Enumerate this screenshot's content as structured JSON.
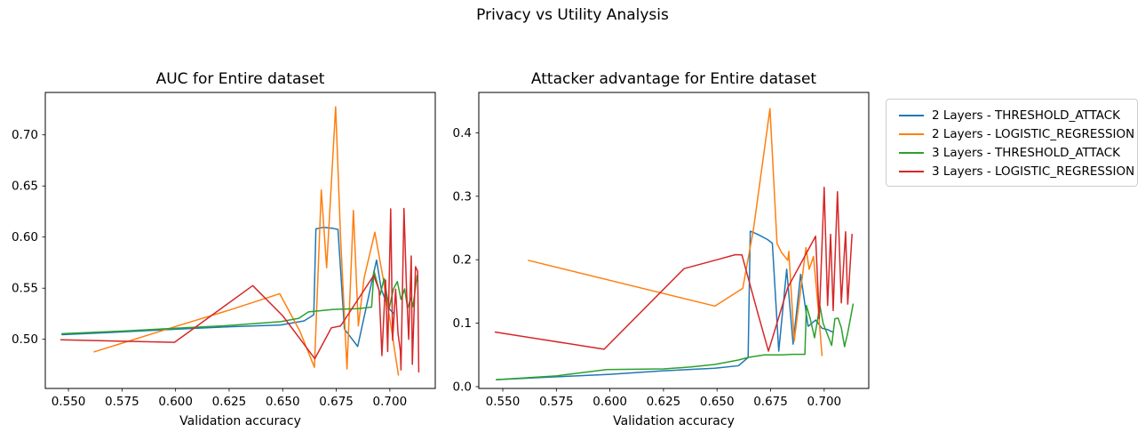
{
  "suptitle": "Privacy vs Utility Analysis",
  "colors": {
    "blue": "#1f77b4",
    "orange": "#ff7f0e",
    "green": "#2ca02c",
    "red": "#d62728",
    "spine": "#000000",
    "legend_border": "#cccccc"
  },
  "legend": {
    "items": [
      {
        "label": "2 Layers - THRESHOLD_ATTACK",
        "color": "#1f77b4"
      },
      {
        "label": "2 Layers - LOGISTIC_REGRESSION",
        "color": "#ff7f0e"
      },
      {
        "label": "3 Layers - THRESHOLD_ATTACK",
        "color": "#2ca02c"
      },
      {
        "label": "3 Layers - LOGISTIC_REGRESSION",
        "color": "#d62728"
      }
    ]
  },
  "chart_data": [
    {
      "type": "line",
      "title": "AUC for Entire dataset",
      "xlabel": "Validation accuracy",
      "xlim": [
        0.5392,
        0.7212
      ],
      "ylim": [
        0.4519,
        0.7415
      ],
      "grid": false,
      "xticks": [
        0.55,
        0.575,
        0.6,
        0.625,
        0.65,
        0.675,
        0.7
      ],
      "xtick_labels": [
        "0.550",
        "0.575",
        "0.600",
        "0.625",
        "0.650",
        "0.675",
        "0.700"
      ],
      "yticks": [
        0.5,
        0.55,
        0.6,
        0.65,
        0.7
      ],
      "ytick_labels": [
        "0.50",
        "0.55",
        "0.60",
        "0.65",
        "0.70"
      ],
      "series": [
        {
          "name": "2 Layers - THRESHOLD_ATTACK",
          "color": "#1f77b4",
          "x": [
            0.547,
            0.575,
            0.6,
            0.625,
            0.649,
            0.66,
            0.6645,
            0.6655,
            0.669,
            0.6735,
            0.6758,
            0.6788,
            0.685,
            0.6938,
            0.696,
            0.698,
            0.7,
            0.702
          ],
          "y": [
            0.5045,
            0.5072,
            0.5098,
            0.5122,
            0.514,
            0.518,
            0.524,
            0.608,
            0.6095,
            0.6085,
            0.6075,
            0.51,
            0.493,
            0.5775,
            0.549,
            0.538,
            0.529,
            0.525
          ]
        },
        {
          "name": "2 Layers - LOGISTIC_REGRESSION",
          "color": "#ff7f0e",
          "x": [
            0.562,
            0.6,
            0.625,
            0.6486,
            0.658,
            0.6648,
            0.668,
            0.6705,
            0.6747,
            0.677,
            0.68,
            0.683,
            0.6853,
            0.688,
            0.693,
            0.697,
            0.7,
            0.704
          ],
          "y": [
            0.4877,
            0.5125,
            0.5285,
            0.5446,
            0.508,
            0.4726,
            0.646,
            0.57,
            0.7275,
            0.6,
            0.471,
            0.626,
            0.5131,
            0.56,
            0.6047,
            0.558,
            0.52,
            0.465
          ]
        },
        {
          "name": "3 Layers - THRESHOLD_ATTACK",
          "color": "#2ca02c",
          "x": [
            0.547,
            0.575,
            0.6,
            0.625,
            0.649,
            0.6575,
            0.662,
            0.6735,
            0.685,
            0.6915,
            0.6926,
            0.6955,
            0.6973,
            0.6997,
            0.7017,
            0.7035,
            0.7052,
            0.7069,
            0.7083,
            0.7098,
            0.7108,
            0.7127
          ],
          "y": [
            0.5055,
            0.508,
            0.5108,
            0.5135,
            0.5172,
            0.5205,
            0.5268,
            0.5292,
            0.53,
            0.5315,
            0.567,
            0.5435,
            0.5595,
            0.5304,
            0.5493,
            0.5565,
            0.539,
            0.5493,
            0.5304,
            0.5406,
            0.5319,
            0.5623
          ]
        },
        {
          "name": "3 Layers - LOGISTIC_REGRESSION",
          "color": "#d62728",
          "x": [
            0.5465,
            0.5995,
            0.636,
            0.65,
            0.665,
            0.6727,
            0.677,
            0.6925,
            0.695,
            0.6963,
            0.698,
            0.699,
            0.7004,
            0.7013,
            0.7027,
            0.7038,
            0.7049,
            0.7052,
            0.7066,
            0.7078,
            0.7088,
            0.71,
            0.7105,
            0.712,
            0.713,
            0.7135
          ],
          "y": [
            0.4995,
            0.497,
            0.5525,
            0.523,
            0.481,
            0.5112,
            0.513,
            0.5625,
            0.548,
            0.484,
            0.558,
            0.488,
            0.6276,
            0.499,
            0.549,
            0.506,
            0.489,
            0.47,
            0.628,
            0.548,
            0.5,
            0.5815,
            0.4755,
            0.571,
            0.5665,
            0.468
          ]
        }
      ]
    },
    {
      "type": "line",
      "title": "Attacker advantage for Entire dataset",
      "xlabel": "Validation accuracy",
      "xlim": [
        0.5388,
        0.7208
      ],
      "ylim": [
        -0.0028,
        0.4636
      ],
      "grid": false,
      "xticks": [
        0.55,
        0.575,
        0.6,
        0.625,
        0.65,
        0.675,
        0.7
      ],
      "xtick_labels": [
        "0.550",
        "0.575",
        "0.600",
        "0.625",
        "0.650",
        "0.675",
        "0.700"
      ],
      "yticks": [
        0.0,
        0.1,
        0.2,
        0.3,
        0.4
      ],
      "ytick_labels": [
        "0.0",
        "0.1",
        "0.2",
        "0.3",
        "0.4"
      ],
      "series": [
        {
          "name": "2 Layers - THRESHOLD_ATTACK",
          "color": "#1f77b4",
          "x": [
            0.547,
            0.575,
            0.6,
            0.625,
            0.649,
            0.66,
            0.6645,
            0.6655,
            0.669,
            0.6735,
            0.6758,
            0.6788,
            0.6825,
            0.6855,
            0.689,
            0.6925,
            0.696,
            0.699,
            0.7015,
            0.704
          ],
          "y": [
            0.011,
            0.0155,
            0.0195,
            0.025,
            0.029,
            0.033,
            0.046,
            0.245,
            0.24,
            0.232,
            0.226,
            0.056,
            0.185,
            0.067,
            0.177,
            0.095,
            0.105,
            0.092,
            0.09,
            0.086
          ]
        },
        {
          "name": "2 Layers - LOGISTIC_REGRESSION",
          "color": "#ff7f0e",
          "x": [
            0.562,
            0.649,
            0.662,
            0.667,
            0.6747,
            0.678,
            0.68,
            0.683,
            0.6835,
            0.686,
            0.6905,
            0.6915,
            0.693,
            0.695,
            0.697,
            0.699
          ],
          "y": [
            0.199,
            0.127,
            0.155,
            0.248,
            0.438,
            0.226,
            0.212,
            0.199,
            0.213,
            0.072,
            0.192,
            0.219,
            0.185,
            0.205,
            0.132,
            0.049
          ]
        },
        {
          "name": "3 Layers - THRESHOLD_ATTACK",
          "color": "#2ca02c",
          "x": [
            0.547,
            0.575,
            0.5985,
            0.625,
            0.6375,
            0.649,
            0.66,
            0.6645,
            0.672,
            0.68,
            0.6855,
            0.691,
            0.6917,
            0.6935,
            0.6955,
            0.698,
            0.6995,
            0.7035,
            0.705,
            0.7065,
            0.708,
            0.7095,
            0.711,
            0.7135
          ],
          "y": [
            0.011,
            0.017,
            0.027,
            0.028,
            0.031,
            0.035,
            0.042,
            0.046,
            0.05,
            0.05,
            0.051,
            0.051,
            0.128,
            0.107,
            0.077,
            0.128,
            0.1,
            0.065,
            0.107,
            0.108,
            0.093,
            0.063,
            0.085,
            0.13
          ]
        },
        {
          "name": "3 Layers - LOGISTIC_REGRESSION",
          "color": "#d62728",
          "x": [
            0.5465,
            0.5973,
            0.6346,
            0.65,
            0.6586,
            0.6616,
            0.6686,
            0.674,
            0.683,
            0.696,
            0.6977,
            0.7,
            0.7016,
            0.703,
            0.7042,
            0.7062,
            0.708,
            0.71,
            0.711,
            0.713
          ],
          "y": [
            0.086,
            0.059,
            0.186,
            0.2,
            0.208,
            0.2077,
            0.121,
            0.056,
            0.156,
            0.237,
            0.107,
            0.314,
            0.128,
            0.24,
            0.12,
            0.307,
            0.132,
            0.244,
            0.13,
            0.24
          ]
        }
      ]
    }
  ]
}
